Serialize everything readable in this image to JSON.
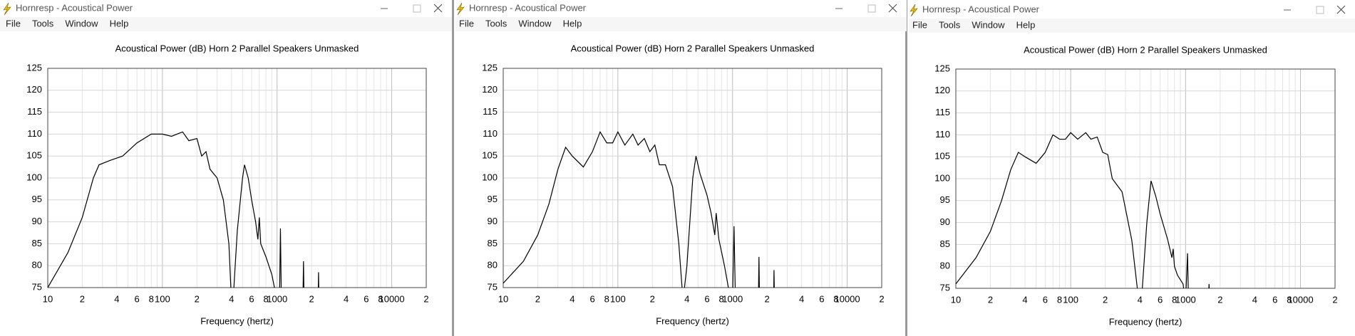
{
  "windows": [
    {
      "title": "Hornresp - Acoustical Power",
      "menu": [
        "File",
        "Tools",
        "Window",
        "Help"
      ]
    },
    {
      "title": "Hornresp - Acoustical Power",
      "menu": [
        "File",
        "Tools",
        "Window",
        "Help"
      ]
    },
    {
      "title": "Hornresp - Acoustical Power",
      "menu": [
        "File",
        "Tools",
        "Window",
        "Help"
      ]
    }
  ],
  "chart_data": [
    {
      "type": "line",
      "title": "Acoustical Power (dB)   Horn   2 Parallel Speakers   Unmasked",
      "xlabel": "Frequency (hertz)",
      "xscale": "log",
      "grid": true,
      "color": "#000000",
      "xlim": [
        10,
        20000
      ],
      "ylim": [
        75,
        125
      ],
      "xticks": [
        10,
        {
          "value": 20,
          "label": "2"
        },
        {
          "value": 40,
          "label": "4"
        },
        {
          "value": 60,
          "label": "6"
        },
        {
          "value": 80,
          "label": "8"
        },
        100,
        {
          "value": 200,
          "label": "2"
        },
        {
          "value": 400,
          "label": "4"
        },
        {
          "value": 600,
          "label": "6"
        },
        {
          "value": 800,
          "label": "8"
        },
        1000,
        {
          "value": 2000,
          "label": "2"
        },
        {
          "value": 4000,
          "label": "4"
        },
        {
          "value": 6000,
          "label": "6"
        },
        {
          "value": 8000,
          "label": "8"
        },
        10000,
        {
          "value": 20000,
          "label": "2"
        }
      ],
      "x_minor_grid": [
        30,
        50,
        70,
        90,
        300,
        500,
        700,
        900,
        3000,
        5000,
        7000,
        9000
      ],
      "yticks": [
        75,
        80,
        85,
        90,
        95,
        100,
        105,
        110,
        115,
        120,
        125
      ],
      "x": [
        10,
        15,
        20,
        25,
        28,
        35,
        45,
        60,
        80,
        100,
        120,
        150,
        170,
        200,
        220,
        240,
        260,
        300,
        340,
        380,
        400,
        420,
        450,
        500,
        520,
        560,
        600,
        650,
        680,
        700,
        720,
        800,
        900,
        1000,
        1050,
        1070,
        1090,
        1680,
        1700,
        1720,
        2280,
        2300,
        2320
      ],
      "values": [
        75,
        83,
        91,
        100,
        103,
        104,
        105,
        108,
        110,
        110,
        109.5,
        110.5,
        108.5,
        109,
        105,
        106,
        102,
        100,
        95,
        85,
        72,
        75,
        88,
        100,
        103,
        100,
        95,
        90,
        86,
        91,
        85,
        82,
        78,
        72,
        72,
        88.5,
        72,
        72,
        81,
        72,
        72,
        78.5,
        72
      ]
    },
    {
      "type": "line",
      "title": "Acoustical Power (dB)   Horn   2 Parallel Speakers   Unmasked",
      "xlabel": "Frequency (hertz)",
      "xscale": "log",
      "grid": true,
      "color": "#000000",
      "xlim": [
        10,
        20000
      ],
      "ylim": [
        75,
        125
      ],
      "xticks": [
        10,
        {
          "value": 20,
          "label": "2"
        },
        {
          "value": 40,
          "label": "4"
        },
        {
          "value": 60,
          "label": "6"
        },
        {
          "value": 80,
          "label": "8"
        },
        100,
        {
          "value": 200,
          "label": "2"
        },
        {
          "value": 400,
          "label": "4"
        },
        {
          "value": 600,
          "label": "6"
        },
        {
          "value": 800,
          "label": "8"
        },
        1000,
        {
          "value": 2000,
          "label": "2"
        },
        {
          "value": 4000,
          "label": "4"
        },
        {
          "value": 6000,
          "label": "6"
        },
        {
          "value": 8000,
          "label": "8"
        },
        10000,
        {
          "value": 20000,
          "label": "2"
        }
      ],
      "x_minor_grid": [
        30,
        50,
        70,
        90,
        300,
        500,
        700,
        900,
        3000,
        5000,
        7000,
        9000
      ],
      "yticks": [
        75,
        80,
        85,
        90,
        95,
        100,
        105,
        110,
        115,
        120,
        125
      ],
      "x": [
        10,
        15,
        20,
        25,
        30,
        35,
        40,
        50,
        60,
        70,
        80,
        90,
        100,
        115,
        135,
        150,
        170,
        190,
        210,
        230,
        260,
        300,
        340,
        370,
        400,
        450,
        480,
        520,
        600,
        650,
        700,
        720,
        760,
        850,
        950,
        1000,
        1030,
        1060,
        1680,
        1700,
        1720,
        2280,
        2300,
        2320
      ],
      "values": [
        76,
        81,
        87,
        94,
        102,
        107,
        105,
        102.5,
        106,
        110.5,
        108,
        108,
        110.5,
        107.5,
        110,
        107.5,
        109,
        106,
        107.5,
        103,
        103,
        98,
        85,
        72,
        80,
        100,
        105,
        101,
        96,
        92,
        87,
        92,
        86,
        80,
        73,
        72,
        89,
        72,
        72,
        82,
        72,
        72,
        79,
        72
      ]
    },
    {
      "type": "line",
      "title": "Acoustical Power (dB)   Horn   2 Parallel Speakers   Unmasked",
      "xlabel": "Frequency (hertz)",
      "xscale": "log",
      "grid": true,
      "color": "#000000",
      "xlim": [
        10,
        20000
      ],
      "ylim": [
        75,
        125
      ],
      "xticks": [
        10,
        {
          "value": 20,
          "label": "2"
        },
        {
          "value": 40,
          "label": "4"
        },
        {
          "value": 60,
          "label": "6"
        },
        {
          "value": 80,
          "label": "8"
        },
        100,
        {
          "value": 200,
          "label": "2"
        },
        {
          "value": 400,
          "label": "4"
        },
        {
          "value": 600,
          "label": "6"
        },
        {
          "value": 800,
          "label": "8"
        },
        1000,
        {
          "value": 2000,
          "label": "2"
        },
        {
          "value": 4000,
          "label": "4"
        },
        {
          "value": 6000,
          "label": "6"
        },
        {
          "value": 8000,
          "label": "8"
        },
        10000,
        {
          "value": 20000,
          "label": "2"
        }
      ],
      "x_minor_grid": [
        30,
        50,
        70,
        90,
        300,
        500,
        700,
        900,
        3000,
        5000,
        7000,
        9000
      ],
      "yticks": [
        75,
        80,
        85,
        90,
        95,
        100,
        105,
        110,
        115,
        120,
        125
      ],
      "x": [
        10,
        15,
        20,
        25,
        30,
        35,
        40,
        50,
        60,
        70,
        80,
        90,
        100,
        115,
        135,
        150,
        170,
        190,
        210,
        230,
        280,
        340,
        380,
        400,
        420,
        460,
        500,
        550,
        600,
        700,
        760,
        780,
        800,
        850,
        950,
        1000,
        1040,
        1060,
        1580,
        1600,
        1620
      ],
      "values": [
        76,
        82,
        88,
        95,
        102,
        106,
        105,
        103.5,
        106,
        110,
        109,
        109,
        110.5,
        109,
        110.5,
        109,
        109.5,
        106,
        105.5,
        100,
        97,
        86,
        75,
        72,
        75,
        90,
        99.5,
        96,
        92,
        86,
        82,
        84,
        80,
        78,
        76,
        72,
        83,
        72,
        72,
        76,
        72
      ]
    }
  ]
}
